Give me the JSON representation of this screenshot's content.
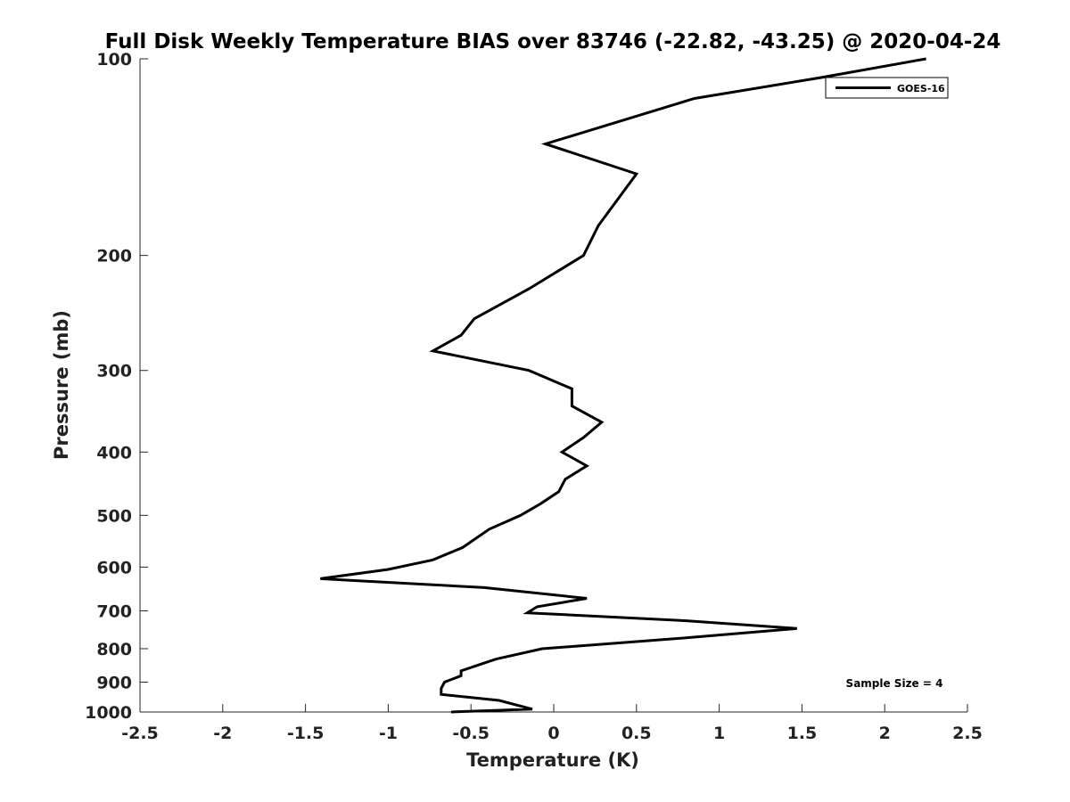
{
  "chart_data": {
    "type": "line",
    "title": "Full Disk Weekly Temperature BIAS over 83746 (-22.82, -43.25) @ 2020-04-24",
    "xlabel": "Temperature (K)",
    "ylabel": "Pressure (mb)",
    "xlim": [
      -2.5,
      2.5
    ],
    "ylim": [
      100,
      1000
    ],
    "yscale": "log",
    "y_reversed": true,
    "grid": false,
    "x_ticks": [
      -2.5,
      -2,
      -1.5,
      -1,
      -0.5,
      0,
      0.5,
      1,
      1.5,
      2,
      2.5
    ],
    "x_tick_labels": [
      "-2.5",
      "-2",
      "-1.5",
      "-1",
      "-0.5",
      "0",
      "0.5",
      "1",
      "1.5",
      "2",
      "2.5"
    ],
    "y_ticks": [
      100,
      200,
      300,
      400,
      500,
      600,
      700,
      800,
      900,
      1000
    ],
    "y_tick_labels": [
      "100",
      "200",
      "300",
      "400",
      "500",
      "600",
      "700",
      "800",
      "900",
      "1000"
    ],
    "legend": {
      "entries": [
        "GOES-16"
      ],
      "location": "top-right"
    },
    "annotation": "Sample Size = 4",
    "series": [
      {
        "name": "GOES-16",
        "color": "#000000",
        "points": [
          [
            2.25,
            100
          ],
          [
            1.6,
            107
          ],
          [
            0.85,
            115
          ],
          [
            -0.05,
            135
          ],
          [
            0.5,
            150
          ],
          [
            0.27,
            180
          ],
          [
            0.18,
            200
          ],
          [
            -0.15,
            225
          ],
          [
            -0.48,
            250
          ],
          [
            -0.56,
            265
          ],
          [
            -0.73,
            280
          ],
          [
            -0.15,
            300
          ],
          [
            0.11,
            320
          ],
          [
            0.11,
            340
          ],
          [
            0.29,
            360
          ],
          [
            0.18,
            380
          ],
          [
            0.05,
            400
          ],
          [
            0.2,
            420
          ],
          [
            0.07,
            440
          ],
          [
            0.03,
            460
          ],
          [
            -0.08,
            480
          ],
          [
            -0.2,
            500
          ],
          [
            -0.39,
            525
          ],
          [
            -0.55,
            560
          ],
          [
            -0.73,
            585
          ],
          [
            -1.0,
            605
          ],
          [
            -1.41,
            625
          ],
          [
            -0.42,
            645
          ],
          [
            0.2,
            670
          ],
          [
            -0.1,
            690
          ],
          [
            -0.16,
            705
          ],
          [
            0.8,
            725
          ],
          [
            1.47,
            745
          ],
          [
            0.8,
            770
          ],
          [
            -0.07,
            800
          ],
          [
            -0.35,
            830
          ],
          [
            -0.5,
            855
          ],
          [
            -0.56,
            865
          ],
          [
            -0.56,
            880
          ],
          [
            -0.66,
            900
          ],
          [
            -0.68,
            920
          ],
          [
            -0.68,
            940
          ],
          [
            -0.33,
            960
          ],
          [
            -0.13,
            990
          ],
          [
            -0.62,
            1000
          ]
        ]
      }
    ]
  }
}
